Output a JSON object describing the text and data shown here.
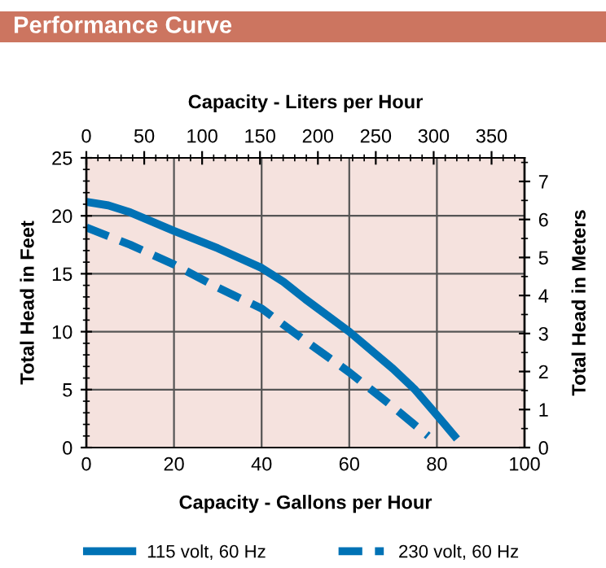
{
  "chart_data": {
    "type": "line",
    "title": "Performance Curve",
    "xlabel": "Capacity - Gallons per Hour",
    "ylabel": "Total Head in Feet",
    "y2label": "Total Head in Meters",
    "x2label": "Capacity - Liters per Hour",
    "xlim": [
      0,
      100
    ],
    "xticks": [
      0,
      20,
      40,
      60,
      80,
      100
    ],
    "ylim": [
      0,
      25
    ],
    "yticks": [
      0,
      5,
      10,
      15,
      20,
      25
    ],
    "y2lim": [
      0,
      7.62
    ],
    "y2ticks": [
      0,
      1,
      2,
      3,
      4,
      5,
      6,
      7
    ],
    "x2lim": [
      0,
      378.5
    ],
    "x2ticks": [
      0,
      50,
      100,
      150,
      200,
      250,
      300,
      350
    ],
    "grid": true,
    "legend": "bottom",
    "marker": "none",
    "series": [
      {
        "name": "115 volt, 60 Hz",
        "color": "#0072b5",
        "line_style": "solid",
        "x": [
          0,
          5,
          10,
          20,
          30,
          40,
          45,
          50,
          60,
          70,
          75,
          80,
          84
        ],
        "values": [
          21.2,
          20.9,
          20.3,
          18.7,
          17.2,
          15.5,
          14.3,
          12.8,
          10,
          6.8,
          5,
          2.8,
          1
        ]
      },
      {
        "name": "230 volt, 60 Hz",
        "color": "#0072b5",
        "line_style": "dashed",
        "x": [
          0,
          10,
          20,
          30,
          40,
          50,
          60,
          70,
          78
        ],
        "values": [
          19,
          17.5,
          15.8,
          13.8,
          12,
          9.2,
          6.5,
          3.5,
          1
        ]
      }
    ]
  }
}
